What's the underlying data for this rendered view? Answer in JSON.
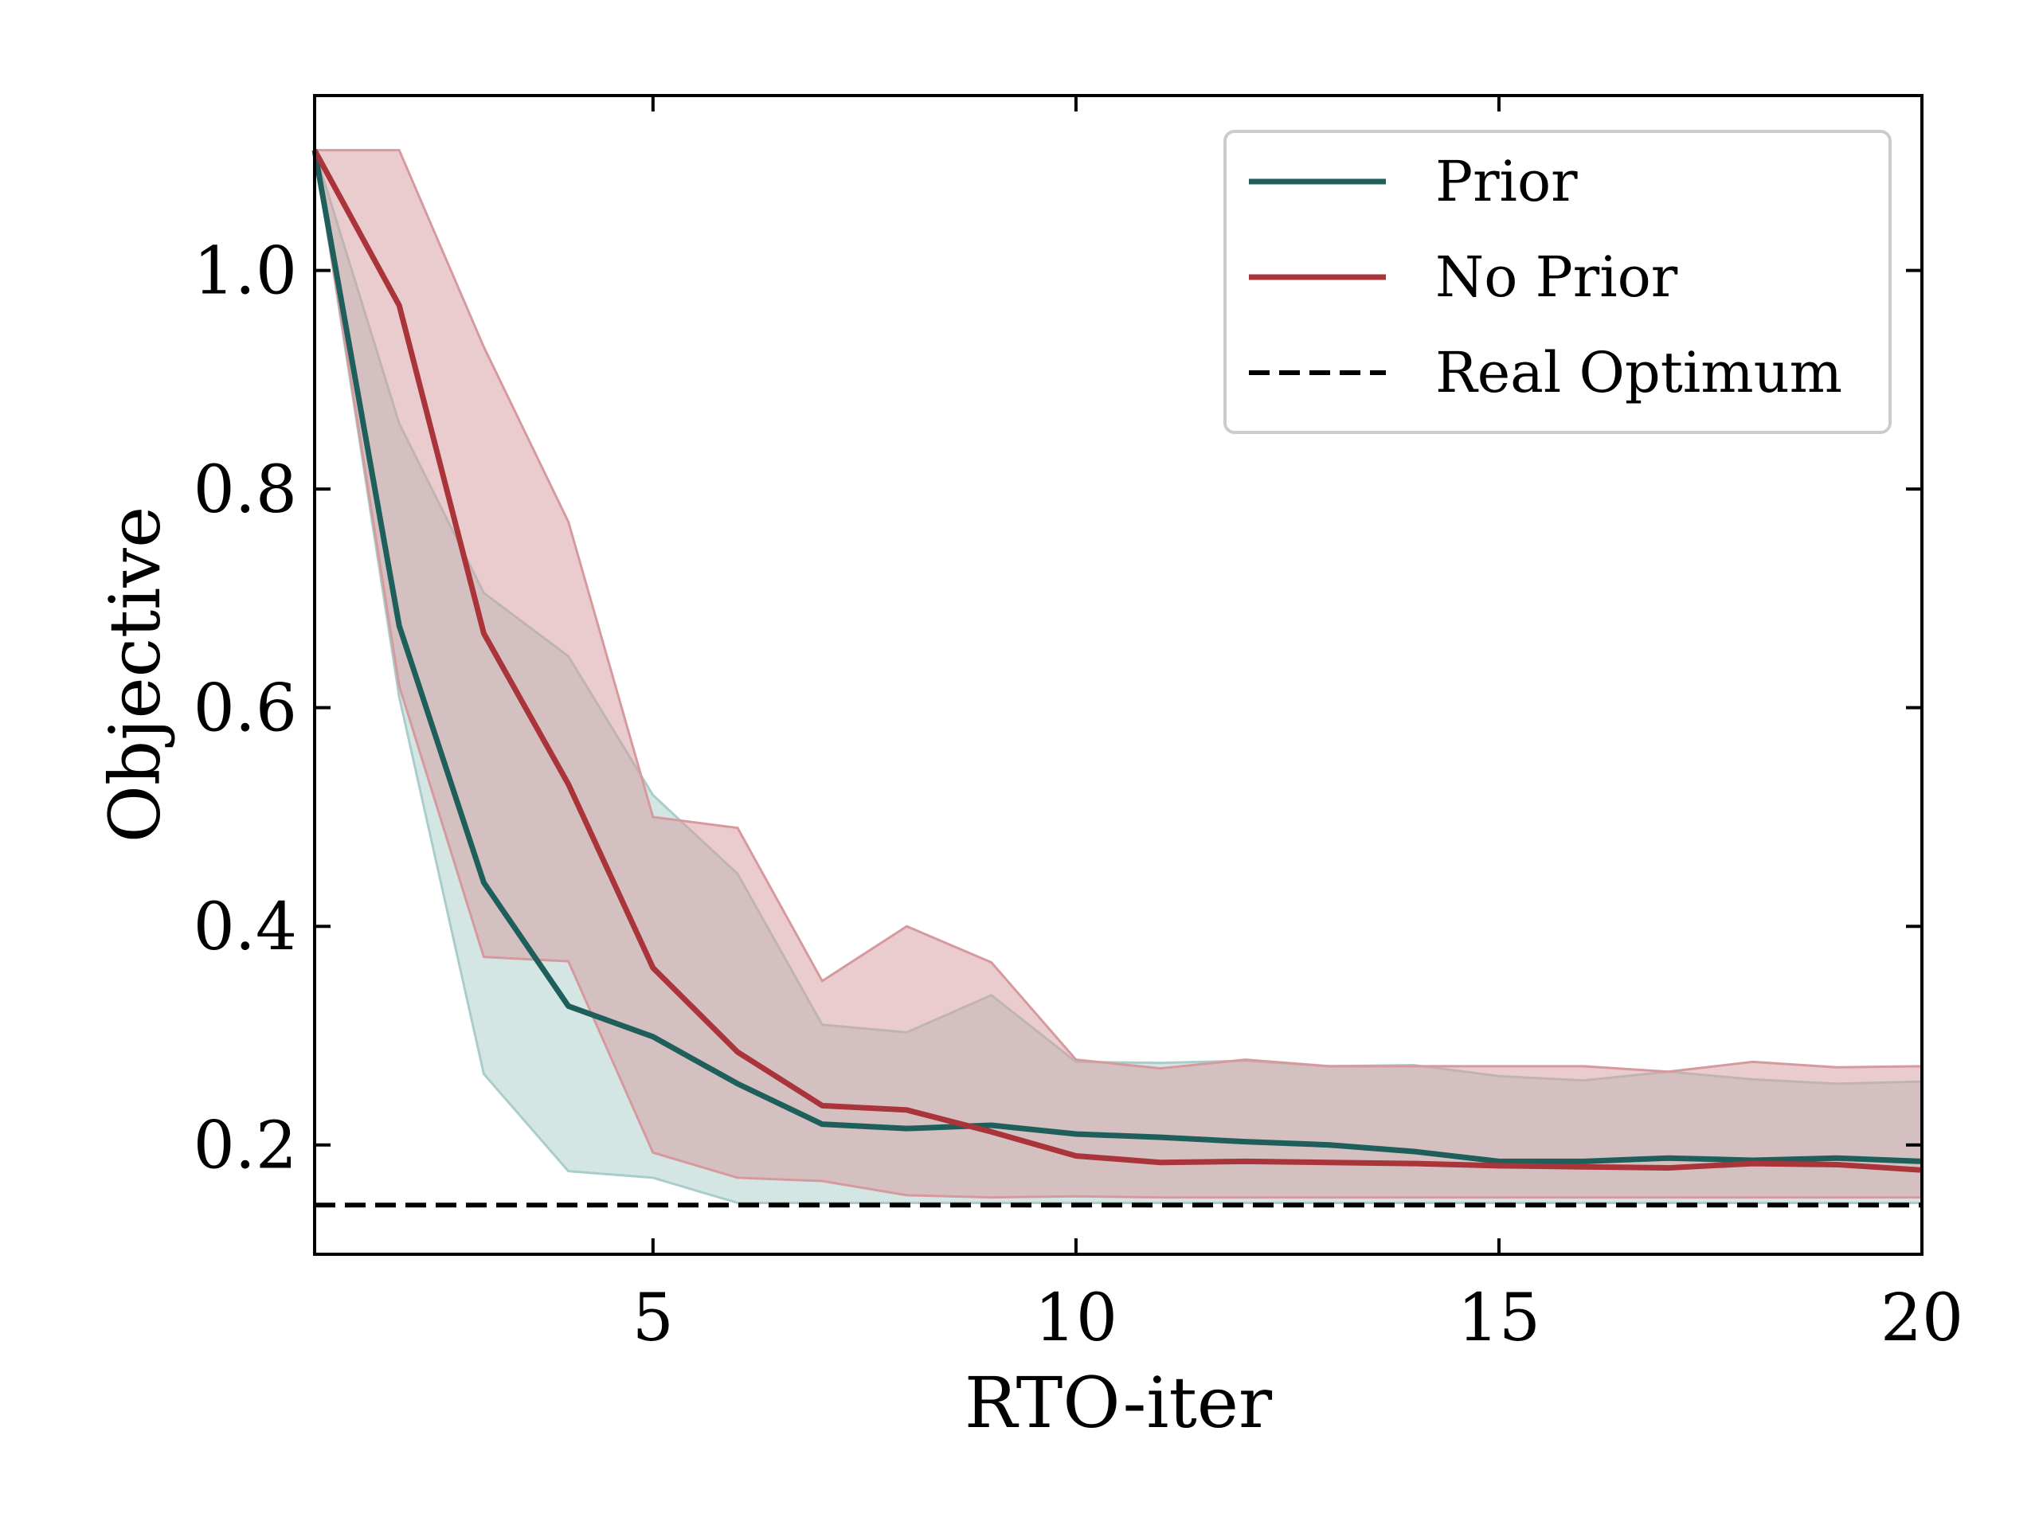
{
  "chart_data": {
    "type": "line",
    "xlabel": "RTO-iter",
    "ylabel": "Objective",
    "xlim": [
      1,
      20
    ],
    "ylim": [
      0.1,
      1.16
    ],
    "xticks": [
      5,
      10,
      15,
      20
    ],
    "xtick_labels": [
      "5",
      "10",
      "15",
      "20"
    ],
    "yticks": [
      0.2,
      0.4,
      0.6,
      0.8,
      1.0
    ],
    "ytick_labels": [
      "0.2",
      "0.4",
      "0.6",
      "0.8",
      "1.0"
    ],
    "grid": false,
    "legend_position": "top-right",
    "x": [
      1,
      2,
      3,
      4,
      5,
      6,
      7,
      8,
      9,
      10,
      11,
      12,
      13,
      14,
      15,
      16,
      17,
      18,
      19,
      20
    ],
    "series": [
      {
        "name": "Prior",
        "color": "#1f5f5b",
        "values": [
          1.11,
          0.675,
          0.44,
          0.327,
          0.299,
          0.256,
          0.219,
          0.215,
          0.218,
          0.21,
          0.207,
          0.203,
          0.2,
          0.194,
          0.185,
          0.185,
          0.188,
          0.186,
          0.188,
          0.185
        ],
        "band_upper": [
          1.11,
          0.86,
          0.705,
          0.647,
          0.52,
          0.448,
          0.31,
          0.303,
          0.337,
          0.276,
          0.275,
          0.277,
          0.272,
          0.273,
          0.263,
          0.259,
          0.267,
          0.26,
          0.256,
          0.258
        ],
        "band_lower": [
          1.11,
          0.61,
          0.265,
          0.176,
          0.17,
          0.147,
          0.147,
          0.147,
          0.147,
          0.147,
          0.147,
          0.147,
          0.147,
          0.147,
          0.147,
          0.147,
          0.147,
          0.147,
          0.147,
          0.147
        ],
        "band_color": "#a9cdca"
      },
      {
        "name": "No Prior",
        "color": "#a93439",
        "values": [
          1.11,
          0.968,
          0.668,
          0.53,
          0.362,
          0.285,
          0.236,
          0.232,
          0.212,
          0.19,
          0.184,
          0.185,
          0.184,
          0.183,
          0.181,
          0.18,
          0.179,
          0.183,
          0.182,
          0.177
        ],
        "band_upper": [
          1.11,
          1.11,
          0.93,
          0.77,
          0.5,
          0.49,
          0.35,
          0.4,
          0.367,
          0.278,
          0.27,
          0.278,
          0.272,
          0.272,
          0.272,
          0.272,
          0.267,
          0.276,
          0.271,
          0.272
        ],
        "band_lower": [
          1.11,
          0.62,
          0.372,
          0.368,
          0.193,
          0.17,
          0.167,
          0.154,
          0.152,
          0.153,
          0.152,
          0.152,
          0.152,
          0.152,
          0.152,
          0.152,
          0.152,
          0.152,
          0.152,
          0.152
        ],
        "band_color": "#d69a9e"
      },
      {
        "name": "Real Optimum",
        "color": "#000000",
        "style": "dashed",
        "constant": 0.145
      }
    ]
  }
}
